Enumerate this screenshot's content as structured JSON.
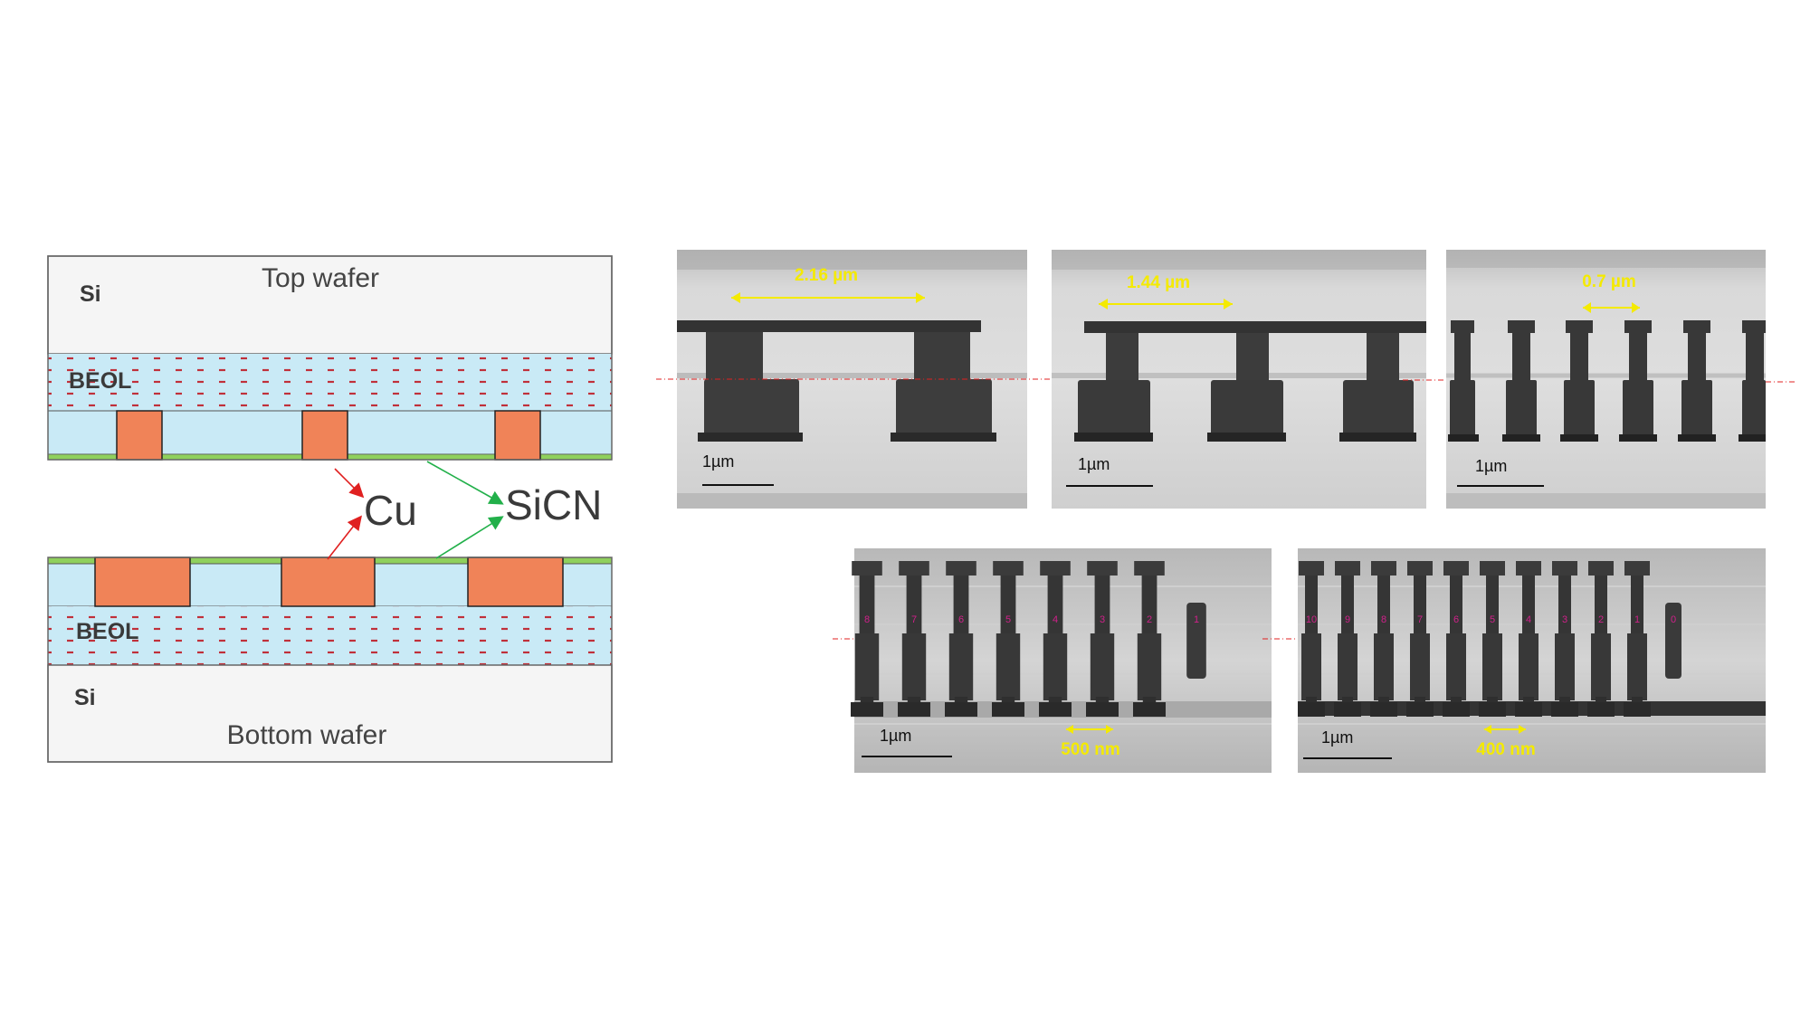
{
  "schematic": {
    "top_wafer_label": "Top wafer",
    "bottom_wafer_label": "Bottom wafer",
    "si_top": "Si",
    "si_bottom": "Si",
    "beol_top": "BEOL",
    "beol_bottom": "BEOL",
    "cu_label": "Cu",
    "sicn_label": "SiCN"
  },
  "micrographs": [
    {
      "pitch": "2.16 µm",
      "scale": "1µm",
      "pillars": 2
    },
    {
      "pitch": "1.44 µm",
      "scale": "1µm",
      "pillars": 3
    },
    {
      "pitch": "0.7 µm",
      "scale": "1µm",
      "pillars": 6
    },
    {
      "pitch": "500 nm",
      "scale": "1µm",
      "pillars": 8,
      "numbers": [
        "8",
        "7",
        "6",
        "5",
        "4",
        "3",
        "2",
        "1"
      ]
    },
    {
      "pitch": "400 nm",
      "scale": "1µm",
      "pillars": 11,
      "numbers": [
        "10",
        "9",
        "8",
        "7",
        "6",
        "5",
        "4",
        "3",
        "2",
        "1",
        "0"
      ]
    }
  ],
  "colors": {
    "copper": "#f08358",
    "dielectric": "#c9eaf6",
    "sicn": "#8fd05c",
    "silicon": "#f5f5f5",
    "arrow_cu": "#e02020",
    "arrow_sicn": "#22b04a",
    "pitch_label": "#f4ea00"
  }
}
